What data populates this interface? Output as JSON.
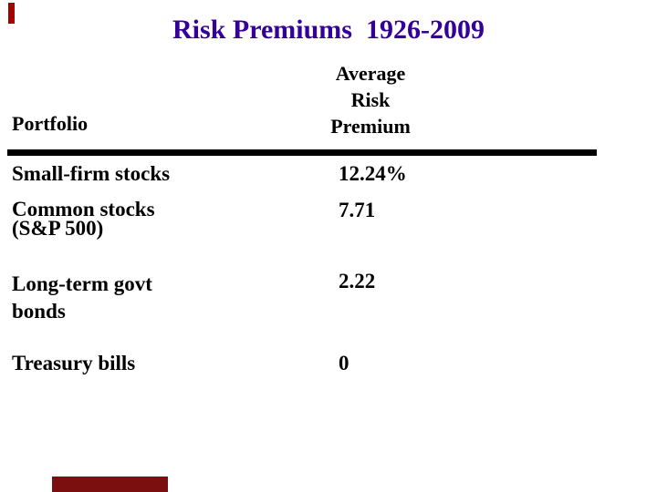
{
  "slide": {
    "title": "Risk Premiums  1926-2009",
    "colors": {
      "background": "#ffffff",
      "title": "#330099",
      "text": "#000000",
      "rule": "#000000",
      "corner_accent": "#a40000",
      "bottom_accent": "#7b0f0f"
    },
    "table": {
      "portfolio_header": "Portfolio",
      "premium_header_lines": [
        "Average",
        "Risk",
        "Premium"
      ],
      "rows": [
        {
          "name_line1": "Small-firm stocks",
          "name_line2": "",
          "value": "12.24%"
        },
        {
          "name_line1": "Common stocks",
          "name_line2": "(S&P 500)",
          "value": "7.71"
        },
        {
          "name_line1": "Long-term govt",
          "name_line2": "bonds",
          "value": "2.22"
        },
        {
          "name_line1": "Treasury bills",
          "name_line2": "",
          "value": "0"
        }
      ]
    }
  },
  "chart_data": {
    "type": "table",
    "title": "Risk Premiums  1926-2009",
    "columns": [
      "Portfolio",
      "Average Risk Premium"
    ],
    "rows": [
      [
        "Small-firm stocks",
        "12.24%"
      ],
      [
        "Common stocks (S&P 500)",
        "7.71"
      ],
      [
        "Long-term govt bonds",
        "2.22"
      ],
      [
        "Treasury bills",
        "0"
      ]
    ]
  }
}
